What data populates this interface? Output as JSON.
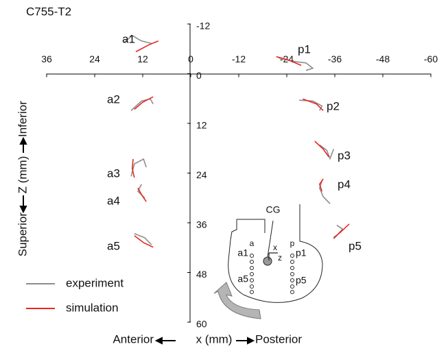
{
  "chart_data": {
    "type": "line",
    "title": "C755-T2",
    "x_label": "x (mm)",
    "x_label_left": "Anterior",
    "x_label_right": "Posterior",
    "y_label": "Z (mm)",
    "y_label_bottom": "Superior",
    "y_label_top": "Inferior",
    "xlim": [
      36,
      -60
    ],
    "xticks": [
      36,
      24,
      12,
      0,
      -12,
      -24,
      -36,
      -48,
      -60
    ],
    "ylim": [
      -12,
      60
    ],
    "yticks": [
      -12,
      0,
      12,
      24,
      36,
      48,
      60
    ],
    "y_inverted": true,
    "series": [
      {
        "name": "experiment",
        "color": "#8c8c8c",
        "x": [
          16.6,
          14.6,
          12.3,
          9.8,
          null,
          -22,
          -25.4,
          -28.8,
          -30.5,
          -28.8,
          null,
          14.9,
          12.3,
          10.1,
          9.4,
          null,
          -27.1,
          -30.5,
          -32.8,
          -32.2,
          null,
          -32.2,
          -34,
          -34.8,
          -35.7,
          null,
          14.9,
          14.1,
          11.8,
          11.1,
          null,
          -32.8,
          -32.2,
          -33.1,
          -34.8,
          null,
          12.3,
          13.2,
          11.5,
          null,
          14.1,
          11.5,
          9.8,
          null,
          -36.5,
          -37.9,
          -36.5,
          -35.7
        ],
        "values": [
          -7.6,
          -9.2,
          -7.9,
          -7.3,
          null,
          -3.8,
          -3,
          -2.6,
          -1.3,
          -0.8,
          null,
          8.9,
          6.6,
          6.1,
          7.3,
          null,
          6.4,
          6.6,
          7.8,
          8.9,
          null,
          17.2,
          18.5,
          20.5,
          18.2,
          null,
          24.8,
          21.8,
          20.6,
          22.6,
          null,
          25.9,
          27.6,
          29.7,
          31.4,
          null,
          26.7,
          28.4,
          30,
          null,
          38.6,
          39.6,
          41.3,
          null,
          36.6,
          37.5,
          39.1,
          39.9
        ]
      },
      {
        "name": "simulation",
        "color": "#e8261f",
        "x": [
          13.7,
          10.6,
          8.1,
          null,
          -21.4,
          -24.5,
          -27.6,
          null,
          14.1,
          12,
          9.4,
          null,
          -28,
          -31.4,
          -33.1,
          null,
          -31,
          -33.1,
          -34.5,
          null,
          14.4,
          14.6,
          14.1,
          null,
          -33.1,
          -32.2,
          -32.8,
          null,
          13.2,
          12.3,
          11.1,
          null,
          14.1,
          11.8,
          9.4,
          null,
          -35.7,
          -37.4,
          -39.6
        ],
        "values": [
          -5.3,
          -6.9,
          -7.9,
          null,
          -4.1,
          -3.3,
          -2,
          null,
          8.6,
          6.9,
          5.6,
          null,
          6.1,
          7.3,
          8.9,
          null,
          16.3,
          18.2,
          20.1,
          null,
          20.6,
          22.9,
          25.1,
          null,
          25.4,
          26.7,
          28.4,
          null,
          27.6,
          29.2,
          30.9,
          null,
          39.1,
          40.8,
          41.9,
          null,
          39.6,
          38.3,
          36.3
        ]
      }
    ],
    "annotations": [
      "a1",
      "p1",
      "a2",
      "p2",
      "p3",
      "a3",
      "p4",
      "a4",
      "a5",
      "p5"
    ],
    "inset_labels": [
      "CG",
      "a",
      "p",
      "a1",
      "p1",
      "a5",
      "p5",
      "x",
      "z"
    ]
  }
}
